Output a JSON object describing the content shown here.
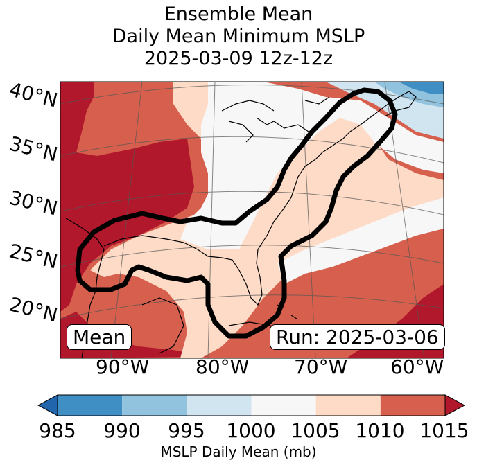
{
  "title": {
    "line1": "Ensemble Mean",
    "line2": "Daily Mean Minimum MSLP",
    "line3": "2025-03-09 12z-12z"
  },
  "map": {
    "lat_labels": [
      "40°N",
      "35°N",
      "30°N",
      "25°N",
      "20°N"
    ],
    "lon_labels": [
      "90°W",
      "80°W",
      "70°W",
      "60°W"
    ],
    "stat_label": "Mean",
    "run_label": "Run: 2025-03-06",
    "contour_color": "#000000",
    "coast_color": "#000000",
    "grid_color": "#555555"
  },
  "colorbar": {
    "label": "MSLP Daily Mean (mb)",
    "ticks": [
      "985",
      "990",
      "995",
      "1000",
      "1005",
      "1010",
      "1015"
    ],
    "bins": [
      {
        "from": 985,
        "to": 990,
        "color": "#3f8fc5"
      },
      {
        "from": 990,
        "to": 995,
        "color": "#91c3de"
      },
      {
        "from": 995,
        "to": 1000,
        "color": "#d1e5f0"
      },
      {
        "from": 1000,
        "to": 1005,
        "color": "#f7f7f7"
      },
      {
        "from": 1005,
        "to": 1010,
        "color": "#fddbc7"
      },
      {
        "from": 1010,
        "to": 1015,
        "color": "#d6604d"
      }
    ],
    "under_color": "#2166ac",
    "over_color": "#b2182b"
  }
}
